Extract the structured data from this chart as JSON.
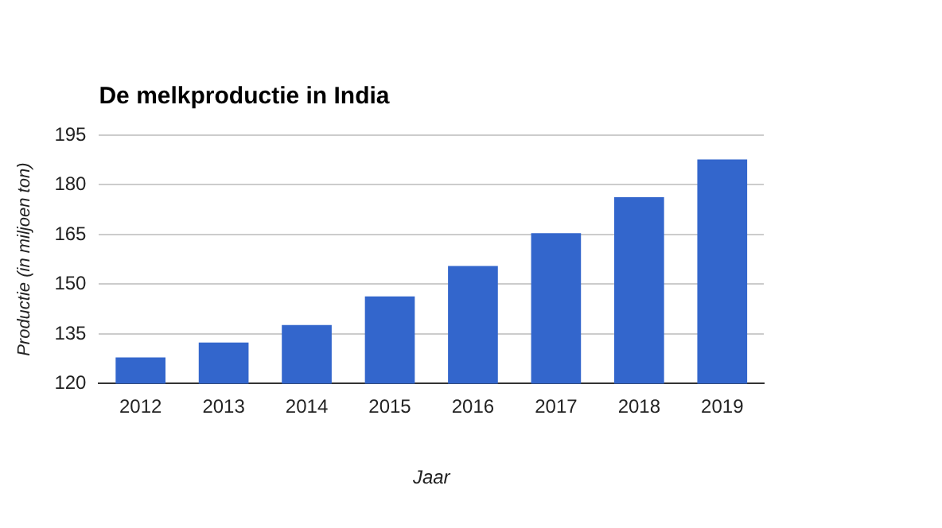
{
  "chart_data": {
    "type": "bar",
    "title": "De melkproductie in India",
    "xlabel": "Jaar",
    "ylabel": "Productie (in miljoen ton)",
    "categories": [
      "2012",
      "2013",
      "2014",
      "2015",
      "2016",
      "2017",
      "2018",
      "2019"
    ],
    "values": [
      127.9,
      132.4,
      137.7,
      146.3,
      155.5,
      165.4,
      176.3,
      187.7
    ],
    "color": "#3366cc",
    "ylim": [
      120,
      195
    ],
    "yticks": [
      120,
      135,
      150,
      165,
      180,
      195
    ],
    "grid": "y"
  }
}
